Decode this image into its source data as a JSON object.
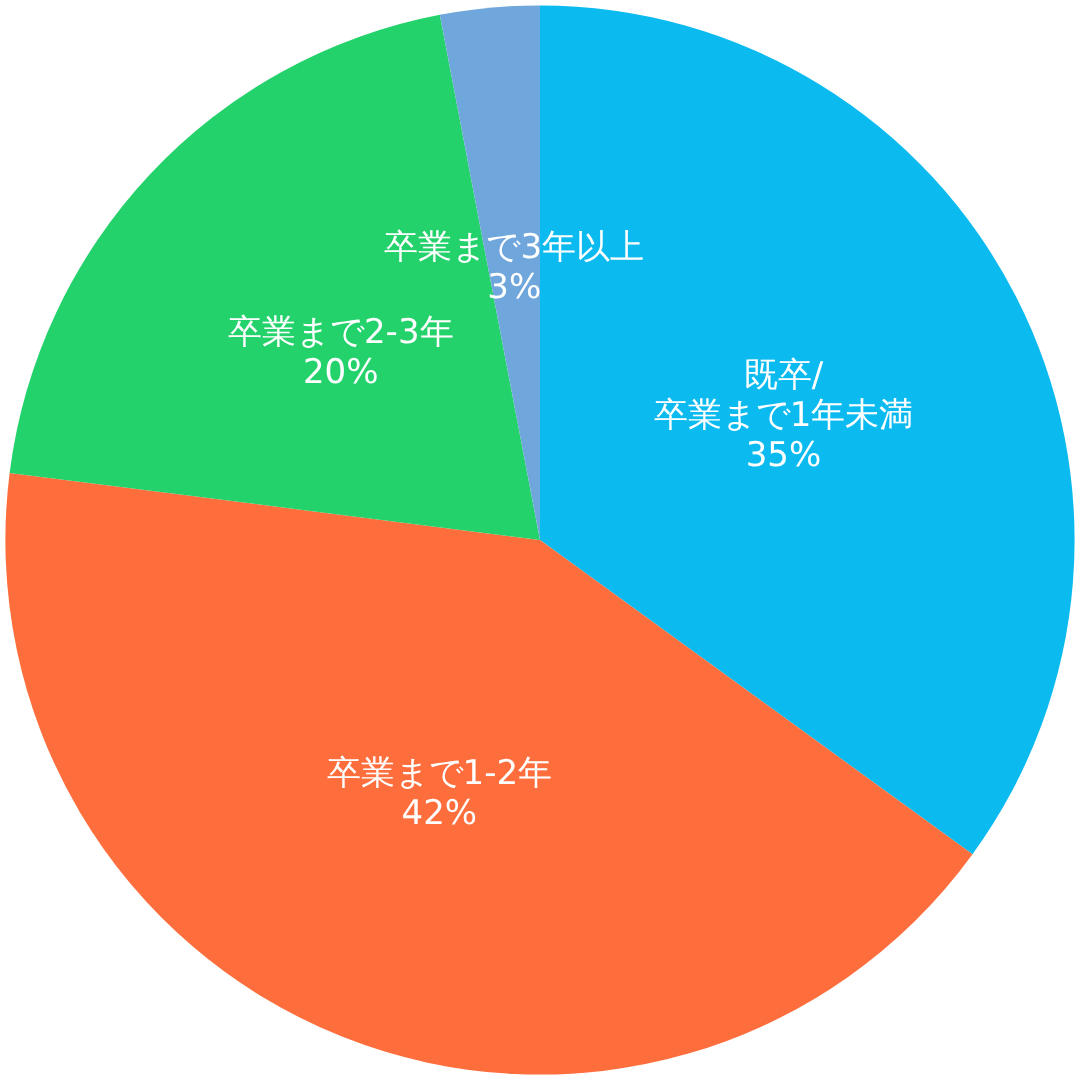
{
  "chart_data": {
    "type": "pie",
    "categories": [
      "既卒/\n卒業まで1年未満",
      "卒業まで1-2年",
      "卒業まで2-3年",
      "卒業まで3年以上"
    ],
    "values": [
      35,
      42,
      20,
      3
    ],
    "value_labels": [
      "35%",
      "42%",
      "20%",
      "3%"
    ],
    "colors": [
      "#0bbbf0",
      "#fe6d3c",
      "#23d26a",
      "#6fa6db"
    ],
    "legend": false
  }
}
